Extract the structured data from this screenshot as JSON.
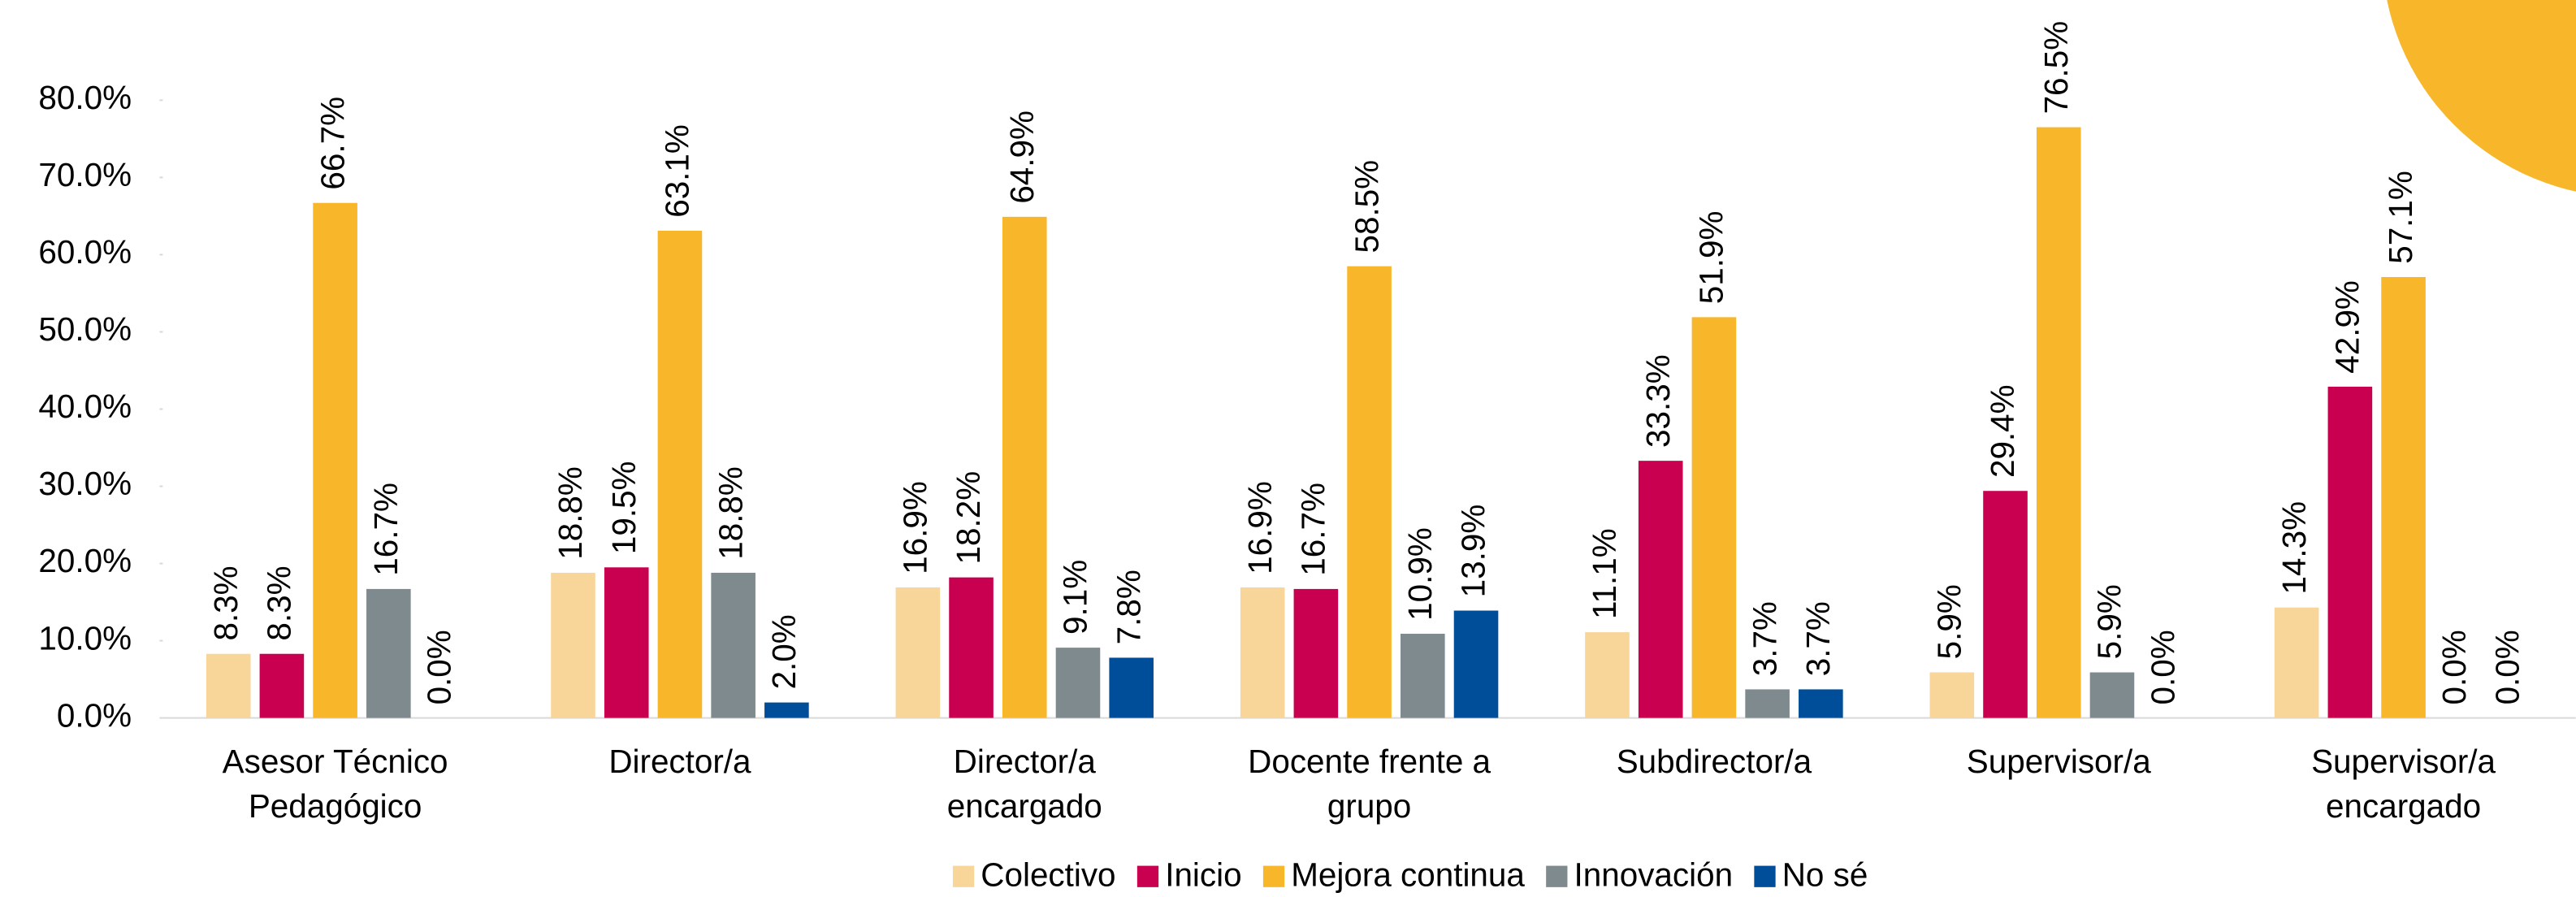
{
  "chart_data": {
    "type": "bar",
    "categories": [
      "Asesor Técnico Pedagógico",
      "Director/a",
      "Director/a encargado",
      "Docente frente a grupo",
      "Subdirector/a",
      "Supervisor/a",
      "Supervisor/a encargado"
    ],
    "series": [
      {
        "name": "Colectivo",
        "color": "#f8d598",
        "values": [
          8.3,
          18.8,
          16.9,
          16.9,
          11.1,
          5.9,
          14.3
        ],
        "value_labels": [
          "8.3%",
          "18.8%",
          "16.9%",
          "16.9%",
          "11.1%",
          "5.9%",
          "14.3%"
        ]
      },
      {
        "name": "Inicio",
        "color": "#c8004f",
        "values": [
          8.3,
          19.5,
          18.2,
          16.7,
          33.3,
          29.4,
          42.9
        ],
        "value_labels": [
          "8.3%",
          "19.5%",
          "18.2%",
          "16.7%",
          "33.3%",
          "29.4%",
          "42.9%"
        ]
      },
      {
        "name": "Mejora continua",
        "color": "#f8b62a",
        "values": [
          66.7,
          63.1,
          64.9,
          58.5,
          51.9,
          76.5,
          57.1
        ],
        "value_labels": [
          "66.7%",
          "63.1%",
          "64.9%",
          "58.5%",
          "51.9%",
          "76.5%",
          "57.1%"
        ]
      },
      {
        "name": "Innovación",
        "color": "#7f8a8f",
        "values": [
          16.7,
          18.8,
          9.1,
          10.9,
          3.7,
          5.9,
          0.0
        ],
        "value_labels": [
          "16.7%",
          "18.8%",
          "9.1%",
          "10.9%",
          "3.7%",
          "5.9%",
          "0.0%"
        ]
      },
      {
        "name": "No sé",
        "color": "#004e9a",
        "values": [
          0.0,
          2.0,
          7.8,
          13.9,
          3.7,
          0.0,
          0.0
        ],
        "value_labels": [
          "0.0%",
          "2.0%",
          "7.8%",
          "13.9%",
          "3.7%",
          "0.0%",
          "0.0%"
        ]
      }
    ],
    "ylim": [
      0,
      80
    ],
    "yticks": [
      {
        "value": 0,
        "label": "0.0%"
      },
      {
        "value": 10,
        "label": "10.0%"
      },
      {
        "value": 20,
        "label": "20.0%"
      },
      {
        "value": 30,
        "label": "30.0%"
      },
      {
        "value": 40,
        "label": "40.0%"
      },
      {
        "value": 50,
        "label": "50.0%"
      },
      {
        "value": 60,
        "label": "60.0%"
      },
      {
        "value": 70,
        "label": "70.0%"
      },
      {
        "value": 80,
        "label": "80.0%"
      }
    ],
    "legend": "bottom"
  }
}
